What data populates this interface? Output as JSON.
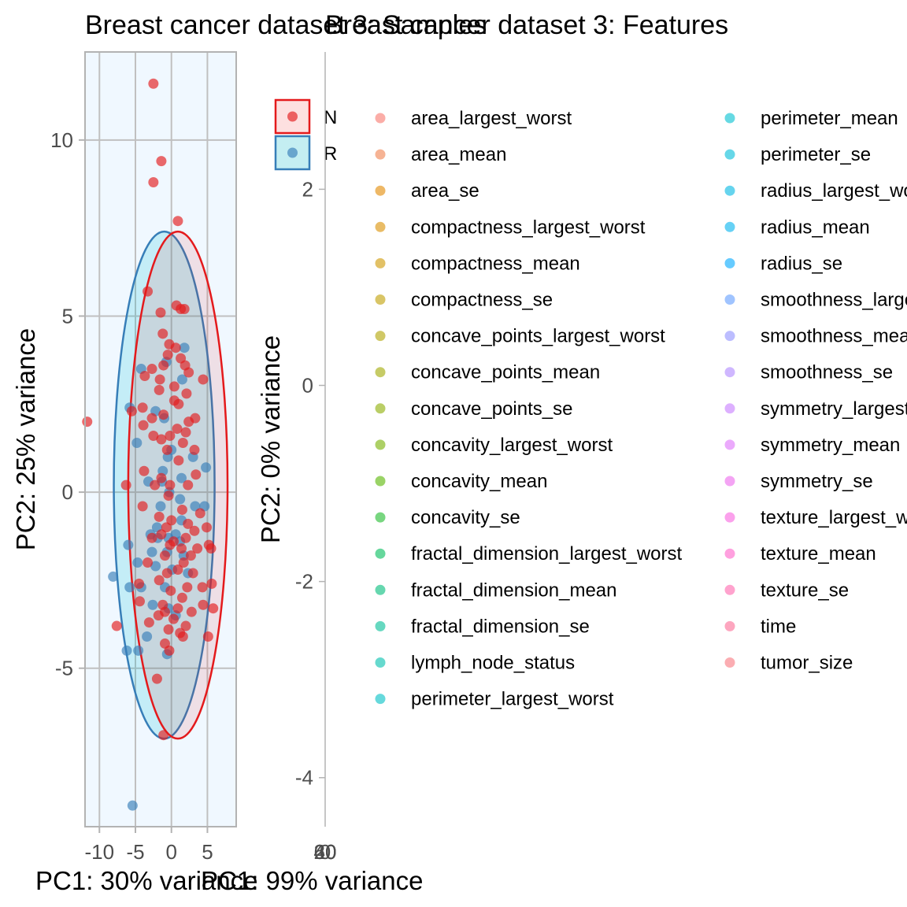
{
  "chart_data": [
    {
      "type": "scatter",
      "title": "Breast cancer dataset 3: Samples",
      "xlabel": "PC1: 30% variance",
      "ylabel": "PC2: 25% variance",
      "xlim": [
        -12,
        9
      ],
      "ylim": [
        -9.5,
        12.5
      ],
      "x_ticks": [
        -10,
        -5,
        0,
        5
      ],
      "y_ticks": [
        -5,
        0,
        5,
        10
      ],
      "x_tick_labels": [
        "-10",
        "-5",
        "0",
        "5"
      ],
      "y_tick_labels": [
        "-5",
        "0",
        "5",
        "10"
      ],
      "grid": true,
      "legend_position": "right",
      "series": [
        {
          "name": "N",
          "color": "#e41a1c",
          "ellipse": {
            "cx": 0.9,
            "cy": 0.2,
            "rx": 6.9,
            "ry": 7.2
          },
          "points": [
            [
              -2.5,
              11.6
            ],
            [
              -1.4,
              9.4
            ],
            [
              -2.5,
              8.8
            ],
            [
              0.9,
              7.7
            ],
            [
              -3.3,
              5.7
            ],
            [
              -1.5,
              5.1
            ],
            [
              0.7,
              5.3
            ],
            [
              1.3,
              5.2
            ],
            [
              -1.2,
              4.5
            ],
            [
              1.8,
              5.2
            ],
            [
              -0.3,
              4.2
            ],
            [
              0.6,
              4.1
            ],
            [
              -0.5,
              3.9
            ],
            [
              -1.1,
              3.6
            ],
            [
              1.3,
              3.8
            ],
            [
              -2.7,
              3.5
            ],
            [
              -1.6,
              3.2
            ],
            [
              1.9,
              3.6
            ],
            [
              2.4,
              3.4
            ],
            [
              -3.7,
              3.3
            ],
            [
              -4.0,
              2.4
            ],
            [
              0.4,
              3.0
            ],
            [
              2.1,
              2.8
            ],
            [
              4.4,
              3.2
            ],
            [
              -1.7,
              2.9
            ],
            [
              0.4,
              2.6
            ],
            [
              -3.9,
              1.9
            ],
            [
              -2.7,
              2.1
            ],
            [
              -1.1,
              2.2
            ],
            [
              1.0,
              2.5
            ],
            [
              2.4,
              2.0
            ],
            [
              -5.5,
              2.3
            ],
            [
              3.3,
              2.1
            ],
            [
              -0.2,
              1.6
            ],
            [
              0.8,
              1.8
            ],
            [
              2.0,
              1.7
            ],
            [
              -2.5,
              1.6
            ],
            [
              -1.4,
              1.5
            ],
            [
              1.6,
              1.4
            ],
            [
              3.2,
              1.2
            ],
            [
              -11.7,
              2.0
            ],
            [
              -0.6,
              1.2
            ],
            [
              3.4,
              0.5
            ],
            [
              -3.8,
              0.6
            ],
            [
              -1.4,
              0.4
            ],
            [
              1.0,
              0.9
            ],
            [
              -2.3,
              0.2
            ],
            [
              -0.2,
              0.2
            ],
            [
              2.3,
              0.2
            ],
            [
              -0.4,
              -0.1
            ],
            [
              -6.3,
              0.2
            ],
            [
              -4.0,
              -0.4
            ],
            [
              1.5,
              -0.5
            ],
            [
              4.0,
              -0.6
            ],
            [
              -1.7,
              -0.7
            ],
            [
              0.0,
              -0.8
            ],
            [
              2.3,
              -0.9
            ],
            [
              -0.7,
              -1.0
            ],
            [
              3.2,
              -1.1
            ],
            [
              -1.4,
              -1.2
            ],
            [
              2.0,
              -1.3
            ],
            [
              4.9,
              -1.0
            ],
            [
              -2.7,
              -1.3
            ],
            [
              0.3,
              -1.4
            ],
            [
              -0.2,
              -1.5
            ],
            [
              1.4,
              -1.6
            ],
            [
              3.6,
              -1.6
            ],
            [
              -0.9,
              -1.8
            ],
            [
              2.7,
              -1.8
            ],
            [
              -3.3,
              -2.0
            ],
            [
              1.7,
              -2.0
            ],
            [
              5.2,
              -1.5
            ],
            [
              -0.6,
              -2.3
            ],
            [
              0.9,
              -2.2
            ],
            [
              3.0,
              -2.3
            ],
            [
              5.5,
              -1.6
            ],
            [
              -1.7,
              -2.5
            ],
            [
              2.2,
              -2.7
            ],
            [
              4.3,
              -2.7
            ],
            [
              -0.1,
              -2.8
            ],
            [
              -4.5,
              -2.6
            ],
            [
              1.5,
              -3.0
            ],
            [
              5.6,
              -2.6
            ],
            [
              -1.2,
              -3.2
            ],
            [
              0.9,
              -3.3
            ],
            [
              2.8,
              -3.4
            ],
            [
              -4.4,
              -3.1
            ],
            [
              4.4,
              -3.2
            ],
            [
              -0.9,
              -3.4
            ],
            [
              -1.8,
              -3.5
            ],
            [
              0.3,
              -3.6
            ],
            [
              5.8,
              -3.3
            ],
            [
              -3.1,
              -3.7
            ],
            [
              2.0,
              -3.8
            ],
            [
              -0.4,
              -3.9
            ],
            [
              1.2,
              -4.0
            ],
            [
              -7.6,
              -3.8
            ],
            [
              -0.9,
              -4.3
            ],
            [
              1.6,
              -4.1
            ],
            [
              5.1,
              -4.1
            ],
            [
              -2.0,
              -5.3
            ],
            [
              -0.3,
              -4.5
            ],
            [
              -1.1,
              -6.9
            ]
          ]
        },
        {
          "name": "R",
          "color": "#377eb8",
          "ellipse": {
            "cx": -1.0,
            "cy": 0.2,
            "rx": 7.0,
            "ry": 7.2
          },
          "points": [
            [
              1.8,
              4.1
            ],
            [
              -0.7,
              3.7
            ],
            [
              -4.2,
              3.5
            ],
            [
              1.5,
              3.2
            ],
            [
              -5.8,
              2.4
            ],
            [
              -2.2,
              2.3
            ],
            [
              -1.0,
              2.1
            ],
            [
              -4.8,
              1.4
            ],
            [
              -0.5,
              1.0
            ],
            [
              3.0,
              1.0
            ],
            [
              -1.2,
              0.6
            ],
            [
              1.4,
              0.4
            ],
            [
              -3.2,
              0.3
            ],
            [
              4.8,
              0.7
            ],
            [
              -0.3,
              0.0
            ],
            [
              1.2,
              -0.2
            ],
            [
              4.6,
              -0.4
            ],
            [
              -1.5,
              -0.4
            ],
            [
              -2.0,
              -1.0
            ],
            [
              1.4,
              -0.8
            ],
            [
              -0.4,
              -1.3
            ],
            [
              0.6,
              -1.2
            ],
            [
              -2.9,
              -1.2
            ],
            [
              1.2,
              -1.4
            ],
            [
              -2.7,
              -1.7
            ],
            [
              -0.6,
              -1.7
            ],
            [
              1.7,
              -1.8
            ],
            [
              -2.2,
              -2.1
            ],
            [
              0.1,
              -2.2
            ],
            [
              2.3,
              -2.3
            ],
            [
              -4.7,
              -2.0
            ],
            [
              -0.9,
              -2.7
            ],
            [
              -8.1,
              -2.4
            ],
            [
              -5.8,
              -2.7
            ],
            [
              -0.4,
              -3.3
            ],
            [
              -2.6,
              -3.2
            ],
            [
              0.6,
              -3.5
            ],
            [
              -3.4,
              -4.1
            ],
            [
              -4.6,
              -4.5
            ],
            [
              -6.2,
              -4.5
            ],
            [
              -0.6,
              -4.6
            ],
            [
              -5.4,
              -8.9
            ],
            [
              -4.2,
              -2.7
            ],
            [
              -1.9,
              -1.3
            ],
            [
              0.0,
              1.2
            ],
            [
              3.3,
              -0.4
            ],
            [
              -1.3,
              0.3
            ],
            [
              -6.0,
              -1.5
            ]
          ]
        }
      ]
    },
    {
      "type": "scatter",
      "title": "Breast cancer dataset 3: Features",
      "xlabel": "PC1: 99% variance",
      "ylabel": "PC2: 0% variance",
      "ylim": [
        -4.5,
        3.4
      ],
      "y_ticks": [
        -4,
        -2,
        0,
        2
      ],
      "y_tick_labels": [
        "-4",
        "-2",
        "0",
        "2"
      ],
      "x_tick_labels_overlapping": [
        "60",
        "40",
        "20",
        "0"
      ],
      "legend_position": "right",
      "legend_entries": [
        {
          "name": "area_largest_worst",
          "color": "#f8766d"
        },
        {
          "name": "area_mean",
          "color": "#f0804c"
        },
        {
          "name": "area_se",
          "color": "#e38900"
        },
        {
          "name": "compactness_largest_worst",
          "color": "#db9000"
        },
        {
          "name": "compactness_mean",
          "color": "#cf9800"
        },
        {
          "name": "compactness_se",
          "color": "#c09e00"
        },
        {
          "name": "concave_points_largest_worst",
          "color": "#b0a400"
        },
        {
          "name": "concave_points_mean",
          "color": "#a0a900"
        },
        {
          "name": "concave_points_se",
          "color": "#8cad00"
        },
        {
          "name": "concavity_largest_worst",
          "color": "#76b100"
        },
        {
          "name": "concavity_mean",
          "color": "#57b600"
        },
        {
          "name": "concavity_se",
          "color": "#1eba2b"
        },
        {
          "name": "fractal_dimension_largest_worst",
          "color": "#00bc5a"
        },
        {
          "name": "fractal_dimension_mean",
          "color": "#00bd7a"
        },
        {
          "name": "fractal_dimension_se",
          "color": "#00be96"
        },
        {
          "name": "lymph_node_status",
          "color": "#00bfae"
        },
        {
          "name": "perimeter_largest_worst",
          "color": "#00c0c4"
        },
        {
          "name": "perimeter_mean",
          "color": "#00c0d0"
        },
        {
          "name": "perimeter_se",
          "color": "#00bdd8"
        },
        {
          "name": "radius_largest_worst",
          "color": "#00b8e3"
        },
        {
          "name": "radius_mean",
          "color": "#00b2ef"
        },
        {
          "name": "radius_se",
          "color": "#00a8ff"
        },
        {
          "name": "smoothness_largest_worst",
          "color": "#619cff"
        },
        {
          "name": "smoothness_mean",
          "color": "#8f91ff"
        },
        {
          "name": "smoothness_se",
          "color": "#af87ff"
        },
        {
          "name": "symmetry_largest_worst",
          "color": "#c77cff"
        },
        {
          "name": "symmetry_mean",
          "color": "#dd71fa"
        },
        {
          "name": "symmetry_se",
          "color": "#ed68ed"
        },
        {
          "name": "texture_largest_worst",
          "color": "#f863df"
        },
        {
          "name": "texture_mean",
          "color": "#ff61c9"
        },
        {
          "name": "texture_se",
          "color": "#ff65ad"
        },
        {
          "name": "time",
          "color": "#fc6a95"
        },
        {
          "name": "tumor_size",
          "color": "#f8767e"
        }
      ]
    }
  ]
}
